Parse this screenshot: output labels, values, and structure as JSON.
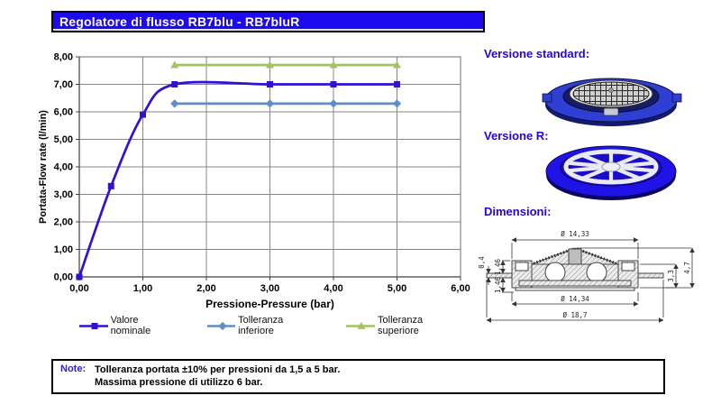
{
  "title_bar": {
    "text": "Regolatore di flusso RB7blu - RB7bluR"
  },
  "chart_data": {
    "type": "line",
    "title": "",
    "xlabel": "Pressione-Pressure (bar)",
    "ylabel": "Portata-Flow rate (l/min)",
    "xlim": [
      0,
      6
    ],
    "ylim": [
      0,
      8
    ],
    "x_tick_labels": [
      "0,00",
      "1,00",
      "2,00",
      "3,00",
      "4,00",
      "5,00",
      "6,00"
    ],
    "y_tick_labels": [
      "0,00",
      "1,00",
      "2,00",
      "3,00",
      "4,00",
      "5,00",
      "6,00",
      "7,00",
      "8,00"
    ],
    "grid": true,
    "legend_position": "bottom",
    "series": [
      {
        "name": "Valore nominale",
        "color": "#2f12d2",
        "marker": "square",
        "smooth": true,
        "x": [
          0,
          0.5,
          1,
          1.5,
          3,
          4,
          5
        ],
        "y": [
          0,
          3.3,
          5.9,
          7.0,
          7.0,
          7.0,
          7.0
        ]
      },
      {
        "name": "Tolleranza inferiore",
        "color": "#5d8ec6",
        "marker": "diamond",
        "smooth": false,
        "x": [
          1.5,
          3,
          4,
          5
        ],
        "y": [
          6.3,
          6.3,
          6.3,
          6.3
        ]
      },
      {
        "name": "Tolleranza superiore",
        "color": "#a3c261",
        "marker": "triangle",
        "smooth": false,
        "x": [
          1.5,
          3,
          4,
          5
        ],
        "y": [
          7.7,
          7.7,
          7.7,
          7.7
        ]
      }
    ]
  },
  "right_column": {
    "standard_heading": "Versione standard:",
    "r_heading": "Versione R:",
    "dimensions_heading": "Dimensioni:",
    "dimensions": {
      "top_diameter": "Ø 14,33",
      "mid_diameter": "Ø 14,34",
      "outer_diameter": "Ø 18,7",
      "left_top": "1,46",
      "left_flange": "0,4",
      "left_bottom": "1,46",
      "right_inner": "3,3",
      "right_total": "4,7"
    }
  },
  "note": {
    "label": "Note:",
    "line1": "Tolleranza portata ±10% per pressioni da 1,5 a 5 bar.",
    "line2": "Massima pressione di utilizzo 6 bar."
  },
  "colors": {
    "title_bar_bg": "#1d0af0",
    "heading_text": "#2306da",
    "note_label": "#2f1fd3"
  }
}
